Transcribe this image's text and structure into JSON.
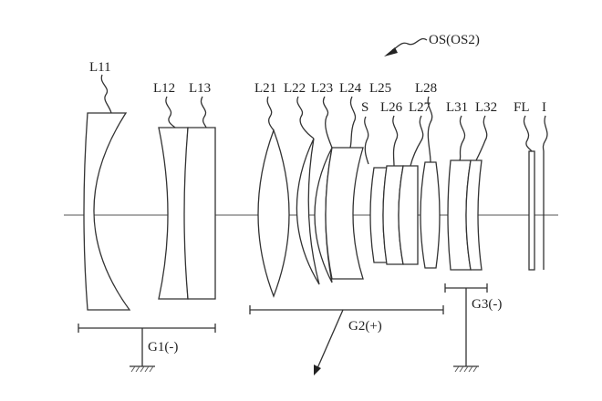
{
  "title": "OS(OS2)",
  "colors": {
    "ink": "#333333",
    "background": "#ffffff"
  },
  "lens_labels": {
    "L11": "L11",
    "L12": "L12",
    "L13": "L13",
    "L21": "L21",
    "L22": "L22",
    "L23": "L23",
    "L24": "L24",
    "L25": "L25",
    "L26": "L26",
    "L27": "L27",
    "L28": "L28",
    "L31": "L31",
    "L32": "L32"
  },
  "stop_label": "S",
  "filter_label": "FL",
  "image_plane_label": "I",
  "groups": {
    "G1": "G1(-)",
    "G2": "G2(+)",
    "G3": "G3(-)"
  }
}
